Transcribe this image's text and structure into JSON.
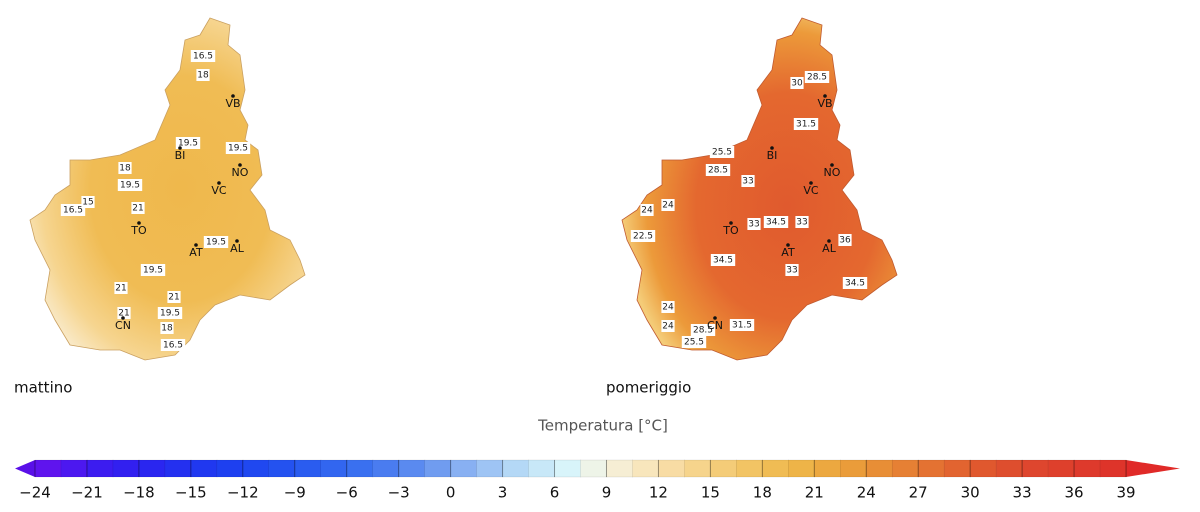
{
  "maps": [
    {
      "caption": "mattino",
      "cities": [
        "VB",
        "BI",
        "NO",
        "VC",
        "TO",
        "AT",
        "AL",
        "CN"
      ],
      "contour_labels": [
        "16.5",
        "18",
        "19.5",
        "19.5",
        "18",
        "19.5",
        "16.5",
        "15",
        "21",
        "19.5",
        "19.5",
        "21",
        "21",
        "19.5",
        "21",
        "18",
        "16.5"
      ]
    },
    {
      "caption": "pomeriggio",
      "cities": [
        "VB",
        "BI",
        "NO",
        "VC",
        "TO",
        "AT",
        "AL",
        "CN"
      ],
      "contour_labels": [
        "28.5",
        "30",
        "31.5",
        "25.5",
        "28.5",
        "33",
        "24",
        "24",
        "22.5",
        "33",
        "34.5",
        "33",
        "36",
        "34.5",
        "33",
        "34.5",
        "24",
        "24",
        "31.5",
        "28.5",
        "25.5"
      ]
    }
  ],
  "colorbar": {
    "title": "Temperatura [°C]",
    "range": [
      -24,
      39
    ],
    "ticks": [
      {
        "value": -24,
        "label": "−24"
      },
      {
        "value": -21,
        "label": "−21"
      },
      {
        "value": -18,
        "label": "−18"
      },
      {
        "value": -15,
        "label": "−15"
      },
      {
        "value": -12,
        "label": "−12"
      },
      {
        "value": -9,
        "label": "−9"
      },
      {
        "value": -6,
        "label": "−6"
      },
      {
        "value": -3,
        "label": "−3"
      },
      0,
      3,
      6,
      9,
      12,
      15,
      18,
      21,
      24,
      27,
      30,
      33,
      36,
      39
    ],
    "colors": [
      "#5f14ee",
      "#4c18f0",
      "#3c1cf0",
      "#3220f0",
      "#2a26f0",
      "#2430f0",
      "#2038f0",
      "#1e40f0",
      "#2048f0",
      "#2452f0",
      "#2a5cf0",
      "#3266f0",
      "#3a70f0",
      "#4a7cf0",
      "#5a8af0",
      "#709cf0",
      "#88b0f2",
      "#9ec4f4",
      "#b4d8f6",
      "#c8e8f8",
      "#d8f4fa",
      "#eef4e8",
      "#f6eed4",
      "#f8e6bc",
      "#f8dca4",
      "#f6d48c",
      "#f4cc78",
      "#f2c464",
      "#f0bc54",
      "#eeb448",
      "#eca840",
      "#ea9c3a",
      "#e88e36",
      "#e68034",
      "#e47232",
      "#e26430",
      "#e0582e",
      "#de4e2e",
      "#de462e",
      "#de402c",
      "#de3a2c",
      "#de342a"
    ],
    "under_color": "#5a10e8",
    "over_color": "#e02a28"
  }
}
